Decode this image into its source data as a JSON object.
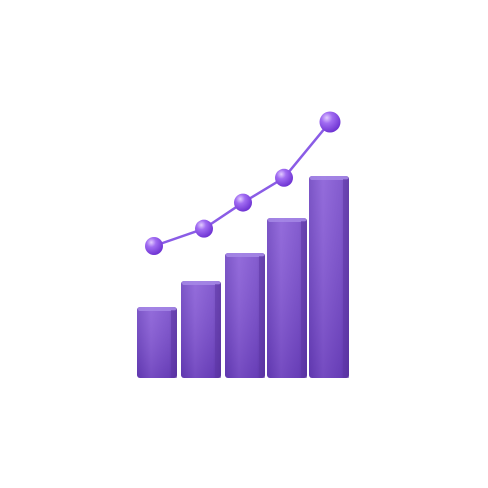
{
  "illustration": {
    "icon": "growth-chart-icon",
    "bar_levels": [
      0.35,
      0.48,
      0.62,
      0.79,
      1.0
    ],
    "trend_levels": [
      0.0,
      0.14,
      0.35,
      0.55,
      1.0
    ],
    "colors": {
      "bar_front": "#7c4fd0",
      "bar_side": "#5f36a8",
      "bar_top": "#a688e6",
      "line": "#8a5ce6",
      "dot": "#8b4fe8",
      "dot_highlight": "#d3b8ff",
      "background": "#ffffff"
    }
  }
}
